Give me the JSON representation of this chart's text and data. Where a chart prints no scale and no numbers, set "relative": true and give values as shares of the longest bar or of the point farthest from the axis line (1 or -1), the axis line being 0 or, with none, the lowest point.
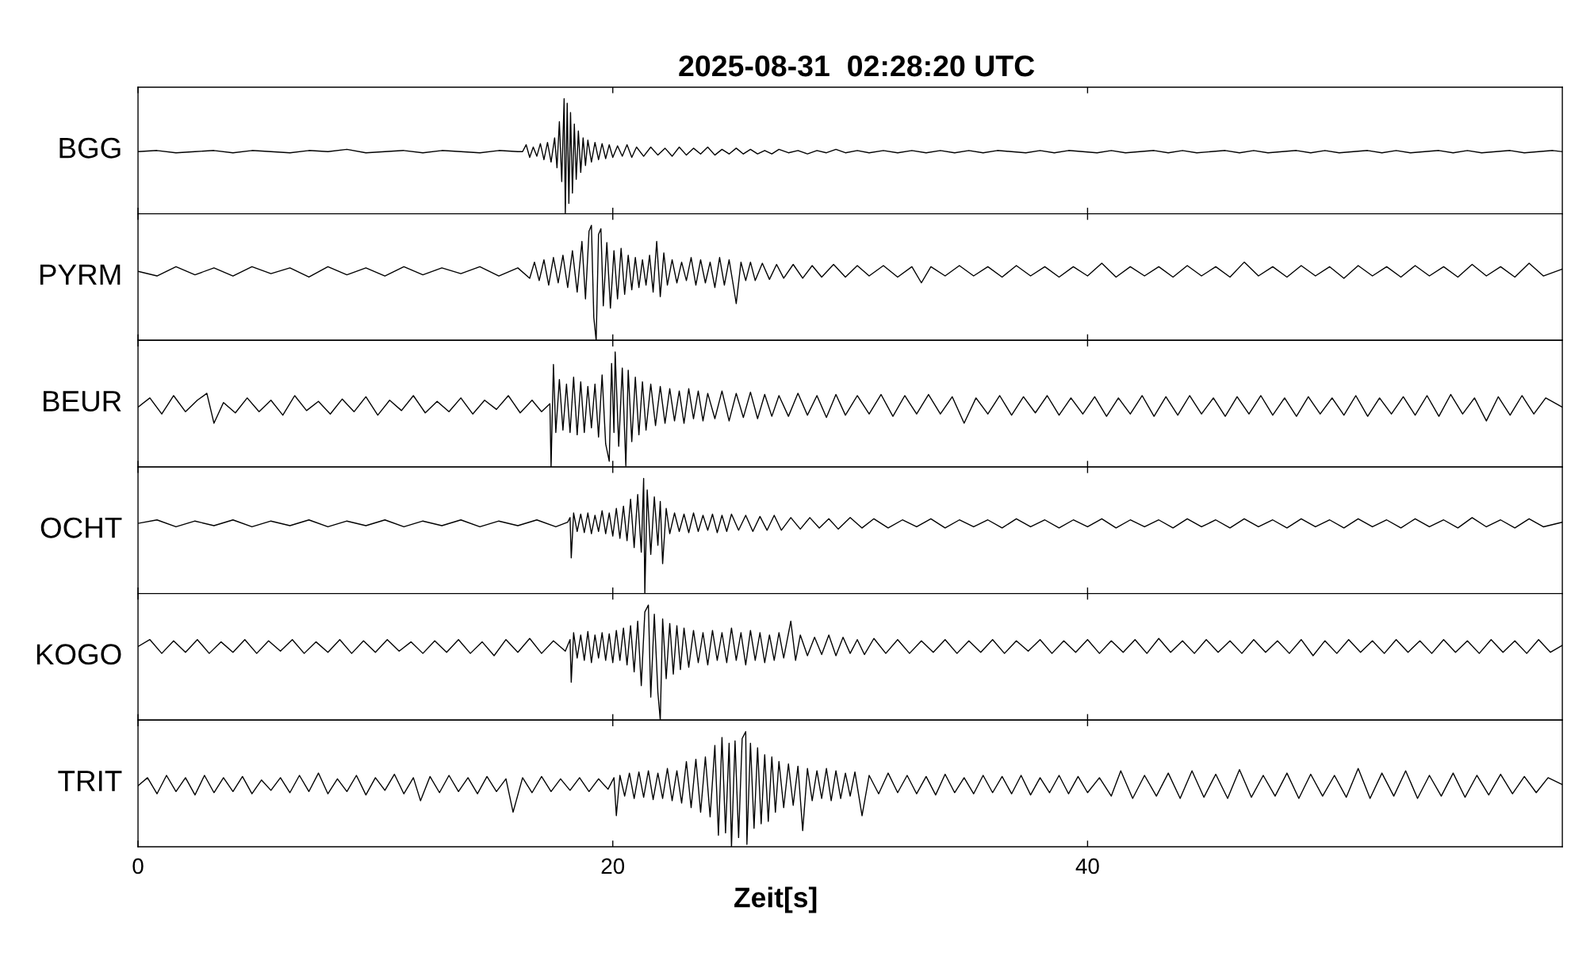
{
  "chart_data": [
    {
      "type": "line",
      "title": "2025-08-31  02:28:20 UTC",
      "ylabel": "BGG",
      "relative": true,
      "xlim": [
        0,
        60
      ],
      "xticks": [
        0,
        20,
        40
      ],
      "tick_labels": false,
      "series": [
        {
          "color": "#000000",
          "x": [
            0,
            0.8,
            1.6,
            2.4,
            3.2,
            4.0,
            4.8,
            5.6,
            6.4,
            7.2,
            8.0,
            8.8,
            9.6,
            10.4,
            11.2,
            12.0,
            12.8,
            13.6,
            14.4,
            15.2,
            16.0,
            16.2,
            16.35,
            16.5,
            16.65,
            16.8,
            16.95,
            17.1,
            17.25,
            17.4,
            17.55,
            17.65,
            17.75,
            17.85,
            17.95,
            18.0,
            18.08,
            18.15,
            18.22,
            18.3,
            18.38,
            18.46,
            18.55,
            18.65,
            18.75,
            18.85,
            18.95,
            19.1,
            19.25,
            19.4,
            19.55,
            19.7,
            19.85,
            20.0,
            20.2,
            20.4,
            20.6,
            20.8,
            21.0,
            21.3,
            21.6,
            21.9,
            22.2,
            22.5,
            22.8,
            23.1,
            23.4,
            23.7,
            24.0,
            24.3,
            24.6,
            24.9,
            25.2,
            25.5,
            25.8,
            26.1,
            26.4,
            26.7,
            27.0,
            27.4,
            27.8,
            28.2,
            28.6,
            29.0,
            29.4,
            29.8,
            30.3,
            30.8,
            31.4,
            32.0,
            32.6,
            33.2,
            33.8,
            34.4,
            35.0,
            35.6,
            36.2,
            36.8,
            37.4,
            38.0,
            38.6,
            39.2,
            39.8,
            40.4,
            41.0,
            41.6,
            42.2,
            42.8,
            43.4,
            44.0,
            44.6,
            45.2,
            45.8,
            46.4,
            47.0,
            47.6,
            48.2,
            48.8,
            49.4,
            50.0,
            50.6,
            51.2,
            51.8,
            52.4,
            53.0,
            53.6,
            54.2,
            54.8,
            55.4,
            56.0,
            56.6,
            57.2,
            57.8,
            58.4,
            59.0,
            59.6,
            60.0
          ],
          "values": [
            0.54,
            0.55,
            0.53,
            0.54,
            0.55,
            0.53,
            0.55,
            0.54,
            0.53,
            0.55,
            0.54,
            0.56,
            0.53,
            0.54,
            0.55,
            0.53,
            0.55,
            0.54,
            0.53,
            0.55,
            0.54,
            0.54,
            0.6,
            0.49,
            0.58,
            0.5,
            0.61,
            0.47,
            0.62,
            0.45,
            0.66,
            0.4,
            0.8,
            0.28,
            1.0,
            0.0,
            0.96,
            0.09,
            0.88,
            0.18,
            0.78,
            0.3,
            0.72,
            0.36,
            0.66,
            0.42,
            0.64,
            0.45,
            0.62,
            0.47,
            0.61,
            0.48,
            0.6,
            0.49,
            0.59,
            0.5,
            0.6,
            0.49,
            0.58,
            0.5,
            0.58,
            0.51,
            0.57,
            0.5,
            0.58,
            0.51,
            0.57,
            0.52,
            0.58,
            0.51,
            0.56,
            0.52,
            0.57,
            0.52,
            0.56,
            0.52,
            0.55,
            0.52,
            0.56,
            0.53,
            0.55,
            0.52,
            0.55,
            0.53,
            0.56,
            0.53,
            0.55,
            0.53,
            0.55,
            0.53,
            0.55,
            0.53,
            0.55,
            0.53,
            0.55,
            0.53,
            0.55,
            0.54,
            0.53,
            0.55,
            0.53,
            0.55,
            0.54,
            0.53,
            0.55,
            0.53,
            0.54,
            0.55,
            0.53,
            0.55,
            0.53,
            0.54,
            0.55,
            0.53,
            0.55,
            0.53,
            0.54,
            0.55,
            0.53,
            0.55,
            0.53,
            0.54,
            0.55,
            0.53,
            0.55,
            0.53,
            0.54,
            0.55,
            0.53,
            0.55,
            0.53,
            0.54,
            0.55,
            0.53,
            0.54,
            0.55,
            0.54
          ]
        }
      ]
    },
    {
      "type": "line",
      "ylabel": "PYRM",
      "relative": true,
      "xlim": [
        0,
        60
      ],
      "xticks": [
        0,
        20,
        40
      ],
      "tick_labels": false,
      "series": [
        {
          "color": "#000000",
          "x": [
            0,
            0.8,
            1.6,
            2.4,
            3.2,
            4.0,
            4.8,
            5.6,
            6.4,
            7.2,
            8.0,
            8.8,
            9.6,
            10.4,
            11.2,
            12.0,
            12.8,
            13.6,
            14.4,
            15.2,
            16.0,
            16.5,
            16.7,
            16.9,
            17.1,
            17.3,
            17.5,
            17.7,
            17.9,
            18.1,
            18.3,
            18.5,
            18.7,
            18.85,
            19.0,
            19.1,
            19.2,
            19.3,
            19.4,
            19.5,
            19.6,
            19.75,
            19.9,
            20.05,
            20.2,
            20.35,
            20.5,
            20.65,
            20.8,
            20.95,
            21.1,
            21.25,
            21.4,
            21.55,
            21.7,
            21.85,
            22.0,
            22.15,
            22.3,
            22.5,
            22.7,
            22.9,
            23.1,
            23.3,
            23.5,
            23.7,
            23.9,
            24.1,
            24.3,
            24.5,
            24.7,
            24.9,
            25.1,
            25.2,
            25.4,
            25.6,
            25.8,
            26.0,
            26.3,
            26.6,
            26.9,
            27.2,
            27.6,
            28.0,
            28.4,
            28.8,
            29.3,
            29.8,
            30.3,
            30.8,
            31.4,
            32.0,
            32.6,
            33.0,
            33.4,
            34.0,
            34.6,
            35.2,
            35.8,
            36.4,
            37.0,
            37.6,
            38.2,
            38.8,
            39.4,
            40.0,
            40.6,
            41.2,
            41.8,
            42.4,
            43.0,
            43.6,
            44.2,
            44.8,
            45.4,
            46.0,
            46.6,
            47.2,
            47.8,
            48.4,
            49.0,
            49.6,
            50.2,
            50.8,
            51.4,
            52.0,
            52.6,
            53.2,
            53.8,
            54.4,
            55.0,
            55.6,
            56.2,
            56.8,
            57.4,
            58.0,
            58.6,
            59.2,
            60.0
          ],
          "values": [
            0.6,
            0.56,
            0.64,
            0.57,
            0.63,
            0.56,
            0.64,
            0.58,
            0.63,
            0.55,
            0.64,
            0.57,
            0.63,
            0.56,
            0.64,
            0.57,
            0.63,
            0.58,
            0.64,
            0.56,
            0.63,
            0.54,
            0.68,
            0.52,
            0.7,
            0.48,
            0.72,
            0.5,
            0.74,
            0.46,
            0.78,
            0.42,
            0.86,
            0.36,
            0.95,
            1.0,
            0.2,
            0.0,
            0.92,
            0.97,
            0.3,
            0.85,
            0.28,
            0.78,
            0.36,
            0.8,
            0.4,
            0.74,
            0.44,
            0.72,
            0.46,
            0.7,
            0.48,
            0.74,
            0.42,
            0.86,
            0.38,
            0.76,
            0.48,
            0.7,
            0.5,
            0.68,
            0.52,
            0.72,
            0.48,
            0.7,
            0.5,
            0.68,
            0.46,
            0.72,
            0.48,
            0.7,
            0.45,
            0.32,
            0.68,
            0.52,
            0.68,
            0.52,
            0.67,
            0.53,
            0.66,
            0.54,
            0.66,
            0.54,
            0.65,
            0.55,
            0.66,
            0.55,
            0.65,
            0.56,
            0.65,
            0.55,
            0.64,
            0.5,
            0.64,
            0.56,
            0.65,
            0.56,
            0.64,
            0.55,
            0.65,
            0.56,
            0.64,
            0.55,
            0.64,
            0.56,
            0.67,
            0.55,
            0.64,
            0.56,
            0.64,
            0.55,
            0.65,
            0.56,
            0.64,
            0.55,
            0.68,
            0.56,
            0.64,
            0.55,
            0.65,
            0.56,
            0.64,
            0.54,
            0.65,
            0.56,
            0.64,
            0.55,
            0.65,
            0.56,
            0.64,
            0.55,
            0.66,
            0.56,
            0.64,
            0.55,
            0.67,
            0.56,
            0.62
          ]
        }
      ]
    },
    {
      "type": "line",
      "ylabel": "BEUR",
      "relative": true,
      "xlim": [
        0,
        60
      ],
      "xticks": [
        0,
        20,
        40
      ],
      "tick_labels": false,
      "series": [
        {
          "color": "#000000",
          "x": [
            0,
            0.5,
            1.0,
            1.5,
            2.0,
            2.5,
            2.9,
            3.2,
            3.6,
            4.1,
            4.6,
            5.1,
            5.6,
            6.1,
            6.6,
            7.1,
            7.6,
            8.1,
            8.6,
            9.1,
            9.6,
            10.1,
            10.6,
            11.1,
            11.6,
            12.1,
            12.6,
            13.1,
            13.6,
            14.1,
            14.6,
            15.1,
            15.6,
            16.1,
            16.6,
            17.0,
            17.35,
            17.4,
            17.5,
            17.6,
            17.75,
            17.9,
            18.05,
            18.2,
            18.35,
            18.5,
            18.65,
            18.8,
            18.95,
            19.1,
            19.25,
            19.4,
            19.55,
            19.7,
            19.85,
            19.95,
            20.05,
            20.1,
            20.25,
            20.4,
            20.55,
            20.65,
            20.8,
            20.95,
            21.1,
            21.25,
            21.4,
            21.6,
            21.8,
            22.0,
            22.2,
            22.4,
            22.6,
            22.8,
            23.0,
            23.2,
            23.4,
            23.6,
            23.8,
            24.0,
            24.3,
            24.6,
            24.9,
            25.2,
            25.5,
            25.8,
            26.1,
            26.4,
            26.7,
            27.0,
            27.4,
            27.8,
            28.2,
            28.6,
            29.0,
            29.4,
            29.8,
            30.3,
            30.8,
            31.3,
            31.8,
            32.3,
            32.8,
            33.3,
            33.8,
            34.3,
            34.8,
            35.3,
            35.8,
            36.3,
            36.8,
            37.3,
            37.8,
            38.3,
            38.8,
            39.3,
            39.8,
            40.3,
            40.8,
            41.3,
            41.8,
            42.3,
            42.8,
            43.3,
            43.8,
            44.3,
            44.8,
            45.3,
            45.8,
            46.3,
            46.8,
            47.3,
            47.8,
            48.3,
            48.8,
            49.3,
            49.8,
            50.3,
            50.8,
            51.3,
            51.8,
            52.3,
            52.8,
            53.3,
            53.8,
            54.3,
            54.8,
            55.3,
            55.8,
            56.3,
            56.8,
            57.3,
            57.8,
            58.3,
            58.8,
            59.3,
            60.0
          ],
          "values": [
            0.52,
            0.6,
            0.46,
            0.62,
            0.48,
            0.58,
            0.64,
            0.38,
            0.56,
            0.47,
            0.6,
            0.48,
            0.58,
            0.45,
            0.62,
            0.49,
            0.57,
            0.46,
            0.59,
            0.48,
            0.61,
            0.45,
            0.58,
            0.49,
            0.62,
            0.47,
            0.57,
            0.48,
            0.6,
            0.46,
            0.58,
            0.5,
            0.62,
            0.47,
            0.58,
            0.48,
            0.55,
            0.0,
            0.89,
            0.3,
            0.76,
            0.32,
            0.72,
            0.3,
            0.78,
            0.28,
            0.74,
            0.3,
            0.7,
            0.34,
            0.72,
            0.26,
            0.8,
            0.2,
            0.05,
            0.9,
            0.3,
            1.0,
            0.18,
            0.86,
            0.01,
            0.84,
            0.22,
            0.78,
            0.28,
            0.74,
            0.32,
            0.72,
            0.36,
            0.7,
            0.38,
            0.68,
            0.4,
            0.66,
            0.38,
            0.68,
            0.42,
            0.66,
            0.4,
            0.64,
            0.42,
            0.66,
            0.4,
            0.64,
            0.43,
            0.65,
            0.42,
            0.63,
            0.44,
            0.62,
            0.44,
            0.64,
            0.45,
            0.62,
            0.43,
            0.63,
            0.45,
            0.62,
            0.46,
            0.63,
            0.44,
            0.62,
            0.46,
            0.63,
            0.46,
            0.61,
            0.38,
            0.6,
            0.46,
            0.62,
            0.45,
            0.61,
            0.47,
            0.62,
            0.45,
            0.6,
            0.46,
            0.61,
            0.44,
            0.6,
            0.46,
            0.62,
            0.44,
            0.61,
            0.45,
            0.62,
            0.46,
            0.6,
            0.44,
            0.61,
            0.46,
            0.62,
            0.45,
            0.6,
            0.44,
            0.61,
            0.46,
            0.6,
            0.45,
            0.62,
            0.44,
            0.6,
            0.46,
            0.61,
            0.45,
            0.62,
            0.44,
            0.63,
            0.46,
            0.6,
            0.4,
            0.61,
            0.45,
            0.62,
            0.46,
            0.6,
            0.52
          ]
        }
      ]
    },
    {
      "type": "line",
      "ylabel": "OCHT",
      "relative": true,
      "xlim": [
        0,
        60
      ],
      "xticks": [
        0,
        20,
        40
      ],
      "tick_labels": false,
      "series": [
        {
          "color": "#000000",
          "x": [
            0,
            0.8,
            1.6,
            2.4,
            3.2,
            4.0,
            4.8,
            5.6,
            6.4,
            7.2,
            8.0,
            8.8,
            9.6,
            10.4,
            11.2,
            12.0,
            12.8,
            13.6,
            14.4,
            15.2,
            16.0,
            16.8,
            17.6,
            18.1,
            18.2,
            18.25,
            18.35,
            18.5,
            18.65,
            18.8,
            18.95,
            19.1,
            19.25,
            19.4,
            19.55,
            19.7,
            19.85,
            20.0,
            20.15,
            20.3,
            20.45,
            20.6,
            20.75,
            20.9,
            21.05,
            21.2,
            21.3,
            21.35,
            21.45,
            21.6,
            21.75,
            21.9,
            22.0,
            22.1,
            22.25,
            22.4,
            22.6,
            22.8,
            23.0,
            23.2,
            23.4,
            23.6,
            23.8,
            24.0,
            24.2,
            24.4,
            24.6,
            24.8,
            25.0,
            25.3,
            25.6,
            25.9,
            26.2,
            26.5,
            26.8,
            27.1,
            27.5,
            27.9,
            28.3,
            28.7,
            29.1,
            29.5,
            30.0,
            30.5,
            31.0,
            31.6,
            32.2,
            32.8,
            33.4,
            34.0,
            34.6,
            35.2,
            35.8,
            36.4,
            37.0,
            37.6,
            38.2,
            38.8,
            39.4,
            40.0,
            40.6,
            41.2,
            41.8,
            42.4,
            43.0,
            43.6,
            44.2,
            44.8,
            45.4,
            46.0,
            46.6,
            47.2,
            47.8,
            48.4,
            49.0,
            49.6,
            50.2,
            50.8,
            51.4,
            52.0,
            52.6,
            53.2,
            53.8,
            54.4,
            55.0,
            55.6,
            56.2,
            56.8,
            57.4,
            58.0,
            58.6,
            59.2,
            60.0
          ],
          "values": [
            0.61,
            0.64,
            0.58,
            0.63,
            0.59,
            0.64,
            0.58,
            0.63,
            0.59,
            0.64,
            0.58,
            0.63,
            0.59,
            0.64,
            0.58,
            0.63,
            0.59,
            0.64,
            0.58,
            0.63,
            0.59,
            0.64,
            0.58,
            0.62,
            0.66,
            0.31,
            0.7,
            0.54,
            0.69,
            0.53,
            0.7,
            0.52,
            0.68,
            0.54,
            0.72,
            0.52,
            0.7,
            0.5,
            0.74,
            0.48,
            0.76,
            0.46,
            0.82,
            0.4,
            0.86,
            0.36,
            1.0,
            0.0,
            0.9,
            0.34,
            0.84,
            0.42,
            0.8,
            0.26,
            0.74,
            0.52,
            0.7,
            0.54,
            0.69,
            0.53,
            0.7,
            0.54,
            0.68,
            0.55,
            0.69,
            0.53,
            0.68,
            0.54,
            0.69,
            0.55,
            0.68,
            0.54,
            0.67,
            0.55,
            0.68,
            0.55,
            0.66,
            0.56,
            0.66,
            0.57,
            0.65,
            0.56,
            0.66,
            0.57,
            0.65,
            0.57,
            0.64,
            0.58,
            0.65,
            0.57,
            0.64,
            0.58,
            0.64,
            0.57,
            0.65,
            0.58,
            0.64,
            0.57,
            0.64,
            0.58,
            0.65,
            0.57,
            0.64,
            0.58,
            0.64,
            0.57,
            0.65,
            0.58,
            0.64,
            0.57,
            0.65,
            0.58,
            0.64,
            0.57,
            0.65,
            0.58,
            0.64,
            0.57,
            0.65,
            0.58,
            0.64,
            0.57,
            0.65,
            0.58,
            0.64,
            0.57,
            0.66,
            0.58,
            0.64,
            0.57,
            0.65,
            0.58,
            0.62
          ]
        }
      ]
    },
    {
      "type": "line",
      "ylabel": "KOGO",
      "relative": true,
      "xlim": [
        0,
        60
      ],
      "xticks": [
        0,
        20,
        40
      ],
      "tick_labels": false,
      "series": [
        {
          "color": "#000000",
          "x": [
            0,
            0.5,
            1.0,
            1.5,
            2.0,
            2.5,
            3.0,
            3.5,
            4.0,
            4.5,
            5.0,
            5.5,
            6.0,
            6.5,
            7.0,
            7.5,
            8.0,
            8.5,
            9.0,
            9.5,
            10.0,
            10.5,
            11.0,
            11.5,
            12.0,
            12.5,
            13.0,
            13.5,
            14.0,
            14.5,
            15.0,
            15.5,
            16.0,
            16.5,
            17.0,
            17.5,
            18.0,
            18.2,
            18.25,
            18.35,
            18.5,
            18.65,
            18.8,
            18.95,
            19.1,
            19.25,
            19.4,
            19.55,
            19.7,
            19.85,
            20.0,
            20.15,
            20.3,
            20.45,
            20.6,
            20.75,
            20.9,
            21.05,
            21.2,
            21.35,
            21.5,
            21.6,
            21.75,
            21.9,
            22.0,
            22.1,
            22.25,
            22.4,
            22.55,
            22.7,
            22.85,
            23.0,
            23.2,
            23.4,
            23.6,
            23.8,
            24.0,
            24.2,
            24.4,
            24.6,
            24.8,
            25.0,
            25.2,
            25.4,
            25.6,
            25.8,
            26.0,
            26.2,
            26.4,
            26.6,
            26.8,
            27.0,
            27.2,
            27.5,
            27.7,
            27.9,
            28.2,
            28.5,
            28.8,
            29.1,
            29.4,
            29.7,
            30.0,
            30.3,
            30.6,
            31.0,
            31.5,
            32.0,
            32.5,
            33.0,
            33.5,
            34.0,
            34.5,
            35.0,
            35.5,
            36.0,
            36.5,
            37.0,
            37.5,
            38.0,
            38.5,
            39.0,
            39.5,
            40.0,
            40.5,
            41.0,
            41.5,
            42.0,
            42.5,
            43.0,
            43.5,
            44.0,
            44.5,
            45.0,
            45.5,
            46.0,
            46.5,
            47.0,
            47.5,
            48.0,
            48.5,
            49.0,
            49.5,
            50.0,
            50.5,
            51.0,
            51.5,
            52.0,
            52.5,
            53.0,
            53.5,
            54.0,
            54.5,
            55.0,
            55.5,
            56.0,
            56.5,
            57.0,
            57.5,
            58.0,
            58.5,
            59.0,
            59.5,
            60.0
          ],
          "values": [
            0.64,
            0.7,
            0.58,
            0.69,
            0.59,
            0.7,
            0.58,
            0.68,
            0.59,
            0.7,
            0.58,
            0.69,
            0.6,
            0.7,
            0.58,
            0.68,
            0.59,
            0.7,
            0.58,
            0.69,
            0.59,
            0.7,
            0.6,
            0.68,
            0.58,
            0.69,
            0.59,
            0.7,
            0.58,
            0.68,
            0.56,
            0.7,
            0.59,
            0.71,
            0.58,
            0.69,
            0.6,
            0.7,
            0.33,
            0.76,
            0.54,
            0.74,
            0.52,
            0.77,
            0.5,
            0.74,
            0.54,
            0.76,
            0.52,
            0.75,
            0.5,
            0.78,
            0.52,
            0.8,
            0.48,
            0.82,
            0.42,
            0.86,
            0.3,
            0.94,
            1.0,
            0.2,
            0.92,
            0.24,
            0.0,
            0.88,
            0.36,
            0.84,
            0.4,
            0.82,
            0.44,
            0.8,
            0.46,
            0.78,
            0.5,
            0.76,
            0.48,
            0.78,
            0.52,
            0.76,
            0.5,
            0.8,
            0.52,
            0.76,
            0.48,
            0.78,
            0.52,
            0.76,
            0.5,
            0.74,
            0.52,
            0.76,
            0.54,
            0.86,
            0.52,
            0.74,
            0.56,
            0.72,
            0.57,
            0.74,
            0.56,
            0.72,
            0.58,
            0.7,
            0.57,
            0.71,
            0.58,
            0.7,
            0.58,
            0.69,
            0.59,
            0.7,
            0.58,
            0.69,
            0.59,
            0.7,
            0.58,
            0.69,
            0.6,
            0.7,
            0.58,
            0.69,
            0.59,
            0.7,
            0.58,
            0.69,
            0.59,
            0.7,
            0.58,
            0.71,
            0.59,
            0.69,
            0.58,
            0.7,
            0.59,
            0.69,
            0.58,
            0.7,
            0.59,
            0.69,
            0.58,
            0.7,
            0.56,
            0.69,
            0.58,
            0.7,
            0.59,
            0.69,
            0.58,
            0.7,
            0.59,
            0.69,
            0.58,
            0.7,
            0.59,
            0.69,
            0.58,
            0.7,
            0.59,
            0.69,
            0.58,
            0.7,
            0.59,
            0.65
          ]
        }
      ]
    },
    {
      "type": "line",
      "ylabel": "TRIT",
      "xlabel": "Zeit[s]",
      "relative": true,
      "xlim": [
        0,
        60
      ],
      "xticks": [
        0,
        20,
        40
      ],
      "tick_labels": "x",
      "series": [
        {
          "color": "#000000",
          "x": [
            0,
            0.4,
            0.8,
            1.2,
            1.6,
            2.0,
            2.4,
            2.8,
            3.2,
            3.6,
            4.0,
            4.4,
            4.8,
            5.2,
            5.6,
            6.0,
            6.4,
            6.8,
            7.2,
            7.6,
            8.0,
            8.4,
            8.8,
            9.2,
            9.6,
            10.0,
            10.4,
            10.8,
            11.2,
            11.6,
            11.9,
            12.3,
            12.7,
            13.1,
            13.5,
            13.9,
            14.3,
            14.7,
            15.1,
            15.5,
            15.8,
            16.2,
            16.6,
            17.0,
            17.4,
            17.8,
            18.2,
            18.6,
            19.0,
            19.4,
            19.8,
            20.05,
            20.15,
            20.3,
            20.5,
            20.7,
            20.9,
            21.1,
            21.3,
            21.5,
            21.7,
            21.9,
            22.1,
            22.3,
            22.5,
            22.7,
            22.9,
            23.1,
            23.3,
            23.5,
            23.7,
            23.9,
            24.1,
            24.3,
            24.45,
            24.6,
            24.75,
            24.9,
            25.0,
            25.15,
            25.3,
            25.45,
            25.6,
            25.65,
            25.8,
            25.95,
            26.1,
            26.25,
            26.4,
            26.55,
            26.7,
            26.85,
            27.0,
            27.2,
            27.4,
            27.6,
            27.8,
            28.0,
            28.2,
            28.4,
            28.6,
            28.8,
            29.0,
            29.2,
            29.4,
            29.6,
            29.8,
            30.0,
            30.2,
            30.5,
            30.8,
            31.2,
            31.6,
            32.0,
            32.4,
            32.8,
            33.2,
            33.6,
            34.0,
            34.4,
            34.8,
            35.2,
            35.6,
            36.0,
            36.4,
            36.8,
            37.2,
            37.6,
            38.0,
            38.4,
            38.8,
            39.2,
            39.6,
            40.0,
            40.5,
            41.0,
            41.4,
            41.9,
            42.4,
            42.9,
            43.4,
            43.9,
            44.4,
            44.9,
            45.4,
            45.9,
            46.4,
            46.9,
            47.4,
            47.9,
            48.4,
            48.9,
            49.4,
            49.9,
            50.4,
            50.9,
            51.4,
            51.9,
            52.4,
            52.9,
            53.4,
            53.9,
            54.4,
            54.9,
            55.4,
            55.9,
            56.4,
            56.9,
            57.4,
            57.9,
            58.4,
            58.9,
            59.4,
            60.0
          ],
          "values": [
            0.53,
            0.6,
            0.46,
            0.62,
            0.48,
            0.6,
            0.45,
            0.62,
            0.47,
            0.6,
            0.48,
            0.61,
            0.46,
            0.58,
            0.49,
            0.6,
            0.47,
            0.62,
            0.48,
            0.64,
            0.46,
            0.59,
            0.48,
            0.62,
            0.45,
            0.6,
            0.49,
            0.63,
            0.46,
            0.6,
            0.4,
            0.61,
            0.47,
            0.62,
            0.48,
            0.6,
            0.46,
            0.61,
            0.48,
            0.59,
            0.3,
            0.6,
            0.47,
            0.61,
            0.48,
            0.59,
            0.49,
            0.6,
            0.48,
            0.59,
            0.5,
            0.6,
            0.27,
            0.62,
            0.44,
            0.64,
            0.42,
            0.65,
            0.43,
            0.66,
            0.41,
            0.64,
            0.42,
            0.68,
            0.4,
            0.66,
            0.38,
            0.74,
            0.34,
            0.76,
            0.3,
            0.78,
            0.26,
            0.88,
            0.1,
            0.95,
            0.12,
            0.9,
            0.0,
            0.92,
            0.08,
            0.94,
            1.0,
            0.02,
            0.9,
            0.16,
            0.86,
            0.2,
            0.8,
            0.22,
            0.78,
            0.3,
            0.74,
            0.34,
            0.72,
            0.36,
            0.7,
            0.14,
            0.68,
            0.4,
            0.66,
            0.42,
            0.68,
            0.4,
            0.66,
            0.42,
            0.64,
            0.44,
            0.65,
            0.27,
            0.62,
            0.46,
            0.64,
            0.47,
            0.62,
            0.46,
            0.61,
            0.45,
            0.63,
            0.47,
            0.6,
            0.46,
            0.62,
            0.47,
            0.61,
            0.46,
            0.62,
            0.45,
            0.6,
            0.47,
            0.62,
            0.46,
            0.61,
            0.47,
            0.6,
            0.44,
            0.66,
            0.42,
            0.62,
            0.44,
            0.64,
            0.42,
            0.66,
            0.43,
            0.63,
            0.42,
            0.67,
            0.43,
            0.62,
            0.44,
            0.64,
            0.42,
            0.63,
            0.44,
            0.62,
            0.43,
            0.68,
            0.42,
            0.64,
            0.44,
            0.66,
            0.42,
            0.62,
            0.44,
            0.64,
            0.43,
            0.62,
            0.45,
            0.63,
            0.46,
            0.61,
            0.47,
            0.6,
            0.54
          ]
        }
      ]
    }
  ]
}
